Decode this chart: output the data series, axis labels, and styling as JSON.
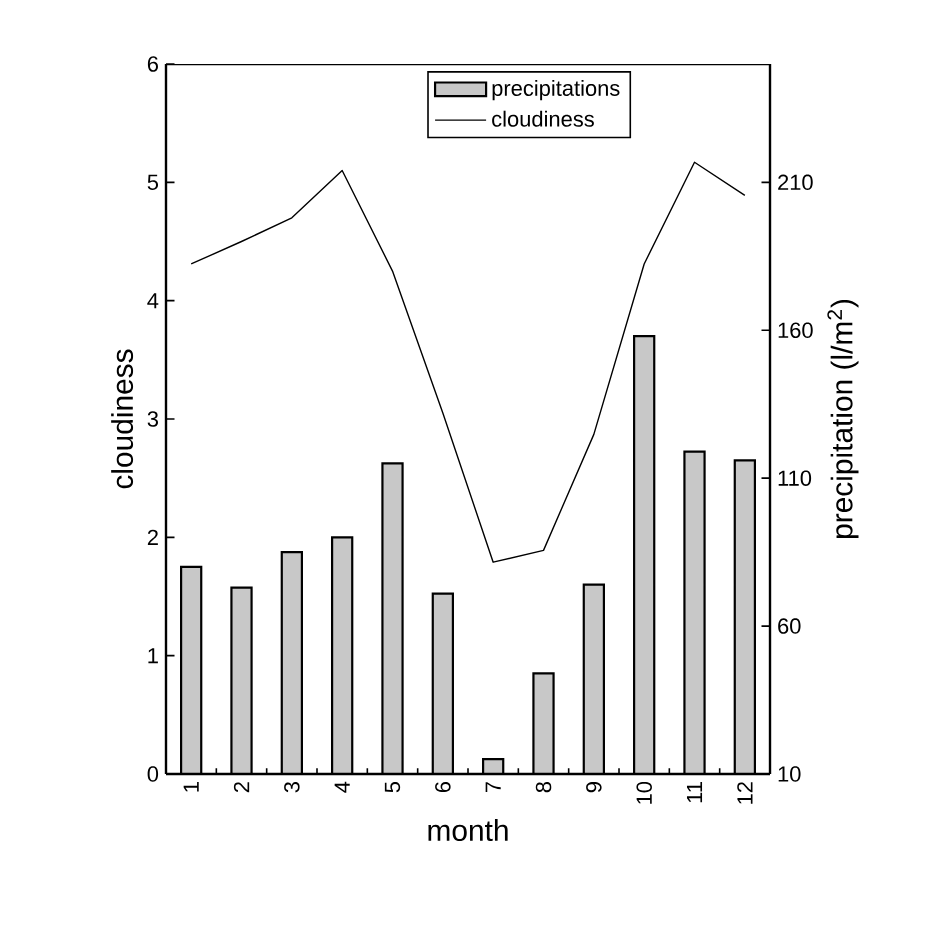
{
  "chart_data": {
    "type": "bar",
    "xlabel": "month",
    "ylabel": "cloudiness",
    "y2label": "precipitation (l/m$^{2}$)",
    "categories": [
      "1",
      "2",
      "3",
      "4",
      "5",
      "6",
      "7",
      "8",
      "9",
      "10",
      "11",
      "12"
    ],
    "series": [
      {
        "name": "precipitations",
        "axis": "y2",
        "color": "#c8c8c8",
        "values": [
          80,
          73,
          85,
          90,
          115,
          71,
          15,
          44,
          74,
          158,
          119,
          116
        ]
      },
      {
        "name": "cloudiness",
        "type": "line",
        "color": "#000000",
        "values": [
          4.31,
          4.5,
          4.7,
          5.1,
          4.25,
          3.05,
          1.79,
          1.89,
          2.87,
          4.31,
          5.17,
          4.89
        ]
      }
    ],
    "ylim": [
      0,
      6
    ],
    "yticks": [
      0,
      1,
      2,
      3,
      4,
      5,
      6
    ],
    "y2lim": [
      10,
      250
    ],
    "y2ticks": [
      10,
      60,
      110,
      160,
      210
    ],
    "legend": "top",
    "marker": "none",
    "line_style": "solid"
  }
}
